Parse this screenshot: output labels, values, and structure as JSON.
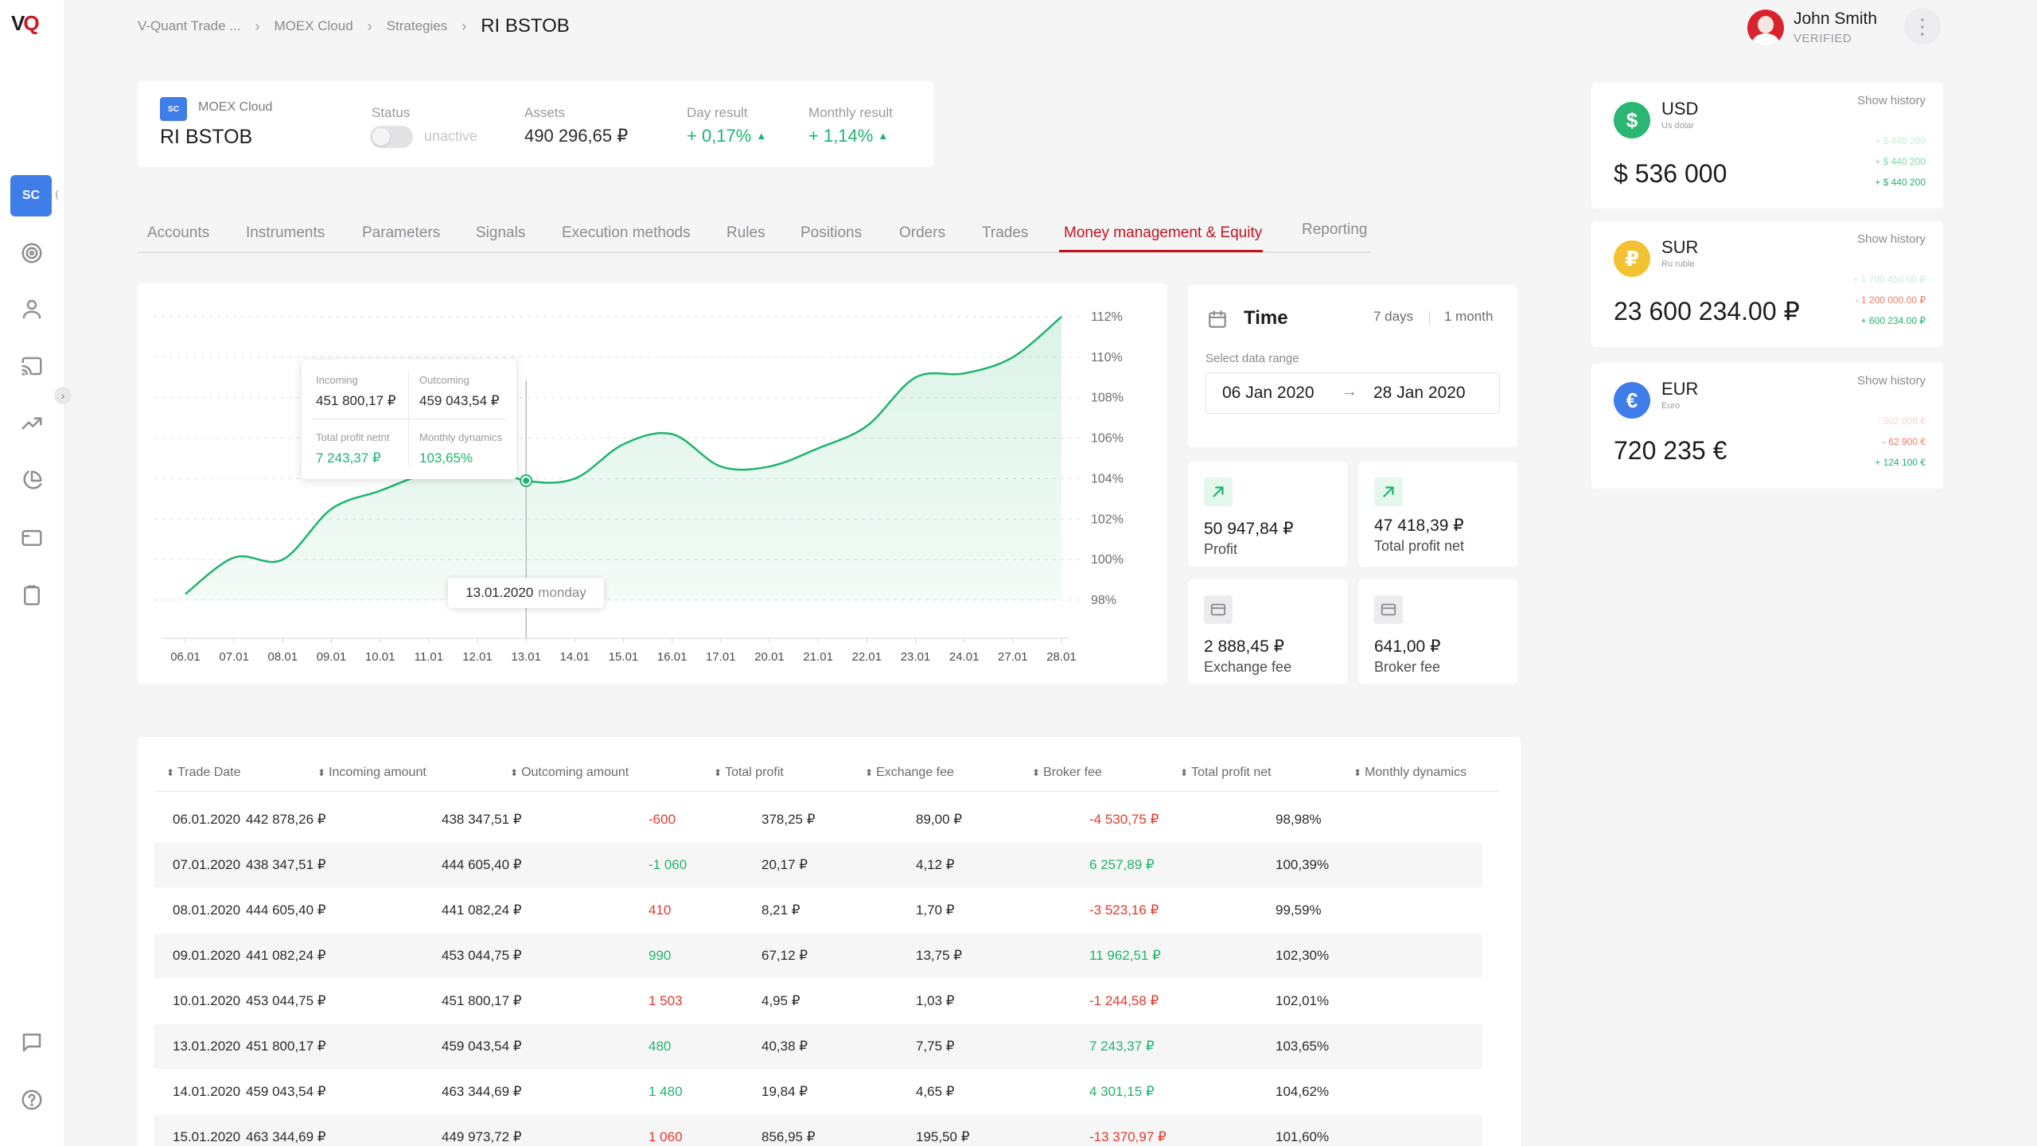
{
  "breadcrumb": {
    "items": [
      "V-Quant Trade ...",
      "MOEX Cloud",
      "Strategies"
    ],
    "current": "RI BSTOB"
  },
  "user": {
    "name": "John Smith",
    "status": "VERIFIED"
  },
  "sidebar": {
    "active_badge": "SC",
    "icons": [
      "target-icon",
      "user-icon",
      "cast-icon",
      "trending-up-icon",
      "pie-chart-icon",
      "card-icon",
      "clipboard-icon",
      "chat-icon",
      "help-icon"
    ]
  },
  "strategy": {
    "badge": "SC",
    "source": "MOEX Cloud",
    "name": "RI BSTOB",
    "status_label": "Status",
    "status_value": "unactive",
    "assets_label": "Assets",
    "assets_value": "490 296,65 ₽",
    "day_label": "Day result",
    "day_value": "+ 0,17%",
    "monthly_label": "Monthly result",
    "monthly_value": "+ 1,14%"
  },
  "tabs": [
    "Accounts",
    "Instruments",
    "Parameters",
    "Signals",
    "Execution methods",
    "Rules",
    "Positions",
    "Orders",
    "Trades",
    "Money management & Equity",
    "Reporting"
  ],
  "active_tab": "Money management & Equity",
  "chart_data": {
    "type": "area",
    "x": [
      "06.01",
      "07.01",
      "08.01",
      "09.01",
      "10.01",
      "11.01",
      "12.01",
      "13.01",
      "14.01",
      "15.01",
      "16.01",
      "17.01",
      "20.01",
      "21.01",
      "22.01",
      "23.01",
      "24.01",
      "27.01",
      "28.01"
    ],
    "y_ticks": [
      "98%",
      "100%",
      "102%",
      "104%",
      "106%",
      "108%",
      "110%",
      "112%"
    ],
    "ylim": [
      98,
      112
    ],
    "values": [
      98.3,
      100.1,
      100.0,
      102.5,
      103.4,
      104.3,
      104.7,
      103.9,
      104.0,
      105.7,
      106.2,
      104.6,
      104.6,
      105.5,
      106.6,
      109.0,
      109.2,
      110.0,
      112.0
    ],
    "grid": true,
    "color": "#1fb36f",
    "highlight_x": "13.01",
    "tooltip": {
      "incoming_label": "Incoming",
      "incoming_value": "451 800,17 ₽",
      "outcoming_label": "Outcoming",
      "outcoming_value": "459 043,54 ₽",
      "profit_label": "Total profit netnt",
      "profit_value": "7 243,37 ₽",
      "dynamics_label": "Monthly dynamics",
      "dynamics_value": "103,65%"
    },
    "date_tip": {
      "date": "13.01.2020",
      "day": "monday"
    }
  },
  "time": {
    "title": "Time",
    "option_week": "7 days",
    "option_month": "1 month",
    "range_label": "Select data range",
    "from": "06 Jan 2020",
    "to": "28 Jan 2020"
  },
  "stats": [
    {
      "value": "50 947,84 ₽",
      "label": "Profit",
      "icon": "arrow-up-right-icon"
    },
    {
      "value": "47 418,39 ₽",
      "label": "Total profit net",
      "icon": "arrow-up-right-icon"
    },
    {
      "value": "2 888,45 ₽",
      "label": "Exchange fee",
      "icon": "card-icon"
    },
    {
      "value": "641,00 ₽",
      "label": "Broker fee",
      "icon": "card-icon"
    }
  ],
  "currencies": [
    {
      "code": "USD",
      "name": "Us dolar",
      "symbol": "$",
      "color": "#2bb673",
      "amount": "$ 536 000",
      "history_label": "Show history",
      "history": [
        "+ $ 440 200",
        "+ $ 440 200",
        "+ $ 440 200"
      ]
    },
    {
      "code": "SUR",
      "name": "Ru ruble",
      "symbol": "₽",
      "color": "#f3c233",
      "amount": "23 600 234.00 ₽",
      "history_label": "Show history",
      "history": [
        "+ 1 700 450.00 ₽",
        "- 1 200 000.00 ₽",
        "+ 600 234.00 ₽"
      ]
    },
    {
      "code": "EUR",
      "name": "Euro",
      "symbol": "€",
      "color": "#3f7de8",
      "amount": "720 235 €",
      "history_label": "Show history",
      "history": [
        "- 302 000 €",
        "- 62 900 €",
        "+ 124 100 €"
      ]
    }
  ],
  "table": {
    "headers": [
      "Trade Date",
      "Incoming amount",
      "Outcoming amount",
      "Total profit",
      "Exchange fee",
      "Broker fee",
      "Total profit net",
      "Monthly dynamics"
    ],
    "rows": [
      [
        "06.01.2020",
        "442 878,26 ₽",
        "438 347,51 ₽",
        "-600",
        "378,25 ₽",
        "89,00 ₽",
        "-4 530,75 ₽",
        "98,98%"
      ],
      [
        "07.01.2020",
        "438 347,51 ₽",
        "444 605,40 ₽",
        "-1 060",
        "20,17 ₽",
        "4,12 ₽",
        "6 257,89 ₽",
        "100,39%"
      ],
      [
        "08.01.2020",
        "444 605,40 ₽",
        "441 082,24 ₽",
        "410",
        "8,21 ₽",
        "1,70 ₽",
        "-3 523,16 ₽",
        "99,59%"
      ],
      [
        "09.01.2020",
        "441 082,24 ₽",
        "453 044,75 ₽",
        "990",
        "67,12 ₽",
        "13,75 ₽",
        "11 962,51 ₽",
        "102,30%"
      ],
      [
        "10.01.2020",
        "453 044,75 ₽",
        "451 800,17 ₽",
        "1 503",
        "4,95 ₽",
        "1,03 ₽",
        "-1 244,58 ₽",
        "102,01%"
      ],
      [
        "13.01.2020",
        "451 800,17 ₽",
        "459 043,54 ₽",
        "480",
        "40,38 ₽",
        "7,75 ₽",
        "7 243,37 ₽",
        "103,65%"
      ],
      [
        "14.01.2020",
        "459 043,54 ₽",
        "463 344,69 ₽",
        "1 480",
        "19,84 ₽",
        "4,65 ₽",
        "4 301,15 ₽",
        "104,62%"
      ],
      [
        "15.01.2020",
        "463 344,69 ₽",
        "449 973,72 ₽",
        "1 060",
        "856,95 ₽",
        "195,50 ₽",
        "-13 370,97 ₽",
        "101,60%"
      ]
    ],
    "profit_colors": [
      "red",
      "green",
      "red",
      "green",
      "red",
      "green",
      "green",
      "red"
    ],
    "net_colors": [
      "red",
      "green",
      "red",
      "green",
      "red",
      "green",
      "green",
      "red"
    ]
  }
}
